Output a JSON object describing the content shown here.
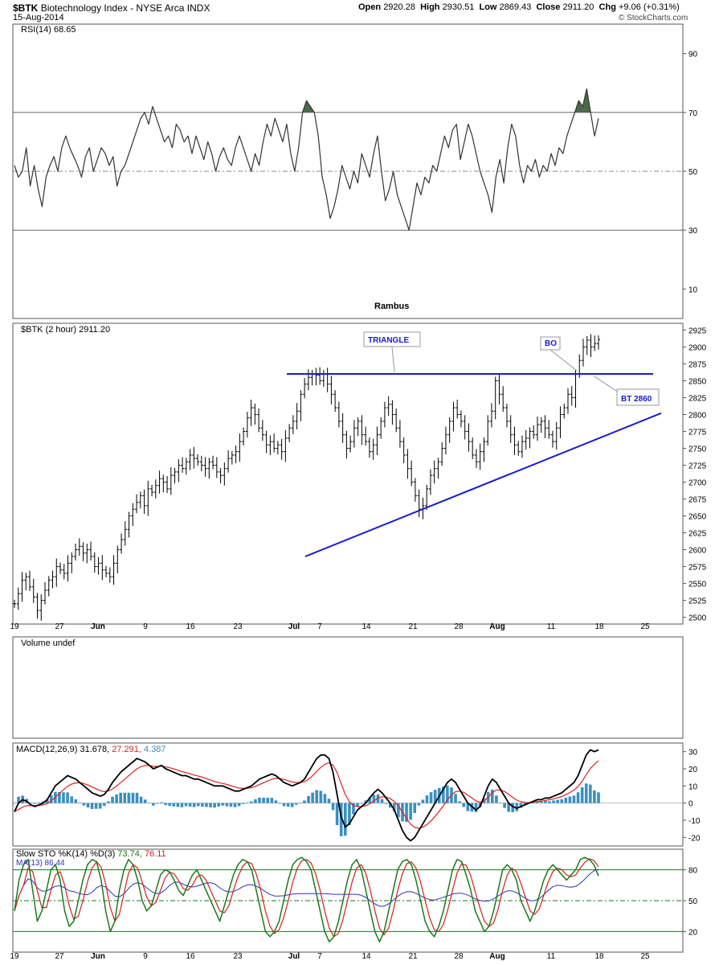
{
  "header": {
    "symbol": "$BTK",
    "name": "Biotechnology Index - NYSE Arca INDX",
    "date": "15-Aug-2014",
    "ohlc": {
      "open_label": "Open",
      "open": "2920.28",
      "high_label": "High",
      "high": "2930.51",
      "low_label": "Low",
      "low": "2869.43",
      "close_label": "Close",
      "close": "2911.20",
      "chg_label": "Chg",
      "chg": "+9.06 (+0.31%)"
    },
    "watermark": "© StockCharts.com"
  },
  "colors": {
    "background": "#ffffff",
    "price_bars": "#000000",
    "trendlines": "#1a1ad4",
    "annotation_text": "#1a1ad4",
    "rsi_line": "#333333",
    "rsi_fill": "#4a6b4a",
    "macd_line": "#000000",
    "macd_signal": "#e02020",
    "macd_histogram": "#3a8fc0",
    "sto_k": "#1a7a1a",
    "sto_d": "#d02020",
    "sto_ma": "#3030c0",
    "guide_green": "#1a7a1a"
  },
  "chart_data": [
    {
      "panel": "rsi",
      "type": "line",
      "label": "RSI(14) 68.65",
      "ylim": [
        0,
        100
      ],
      "yticks": [
        10,
        30,
        50,
        70,
        90
      ],
      "reference_lines": [
        30,
        50,
        70
      ],
      "annotation": "Rambus",
      "values": [
        52,
        48,
        50,
        58,
        45,
        52,
        44,
        38,
        48,
        52,
        55,
        50,
        58,
        62,
        58,
        55,
        52,
        48,
        55,
        58,
        50,
        54,
        58,
        56,
        52,
        55,
        45,
        50,
        52,
        56,
        60,
        64,
        68,
        70,
        66,
        72,
        68,
        64,
        60,
        62,
        58,
        66,
        64,
        60,
        62,
        56,
        62,
        58,
        54,
        60,
        56,
        50,
        55,
        58,
        54,
        52,
        58,
        62,
        58,
        54,
        50,
        56,
        52,
        60,
        66,
        62,
        68,
        64,
        60,
        66,
        56,
        50,
        58,
        70,
        74,
        72,
        70,
        62,
        48,
        42,
        34,
        38,
        44,
        52,
        48,
        44,
        50,
        46,
        56,
        52,
        48,
        56,
        62,
        50,
        40,
        44,
        50,
        42,
        38,
        34,
        30,
        38,
        46,
        42,
        48,
        46,
        52,
        50,
        56,
        62,
        58,
        64,
        66,
        54,
        60,
        66,
        62,
        56,
        50,
        46,
        42,
        36,
        48,
        54,
        46,
        58,
        66,
        62,
        52,
        46,
        52,
        50,
        54,
        48,
        52,
        50,
        56,
        52,
        58,
        56,
        62,
        66,
        70,
        74,
        72,
        78,
        70,
        62,
        68
      ]
    },
    {
      "panel": "price",
      "type": "ohlc",
      "label": "$BTK (2 hour) 2911.20",
      "ylim": [
        2490,
        2935
      ],
      "yticks": [
        2500,
        2525,
        2550,
        2575,
        2600,
        2625,
        2650,
        2675,
        2700,
        2725,
        2750,
        2775,
        2800,
        2825,
        2850,
        2875,
        2900,
        2925
      ],
      "x_date_labels": [
        "19",
        "27",
        "Jun",
        "9",
        "16",
        "23",
        "Jul",
        "7",
        "14",
        "21",
        "28",
        "Aug",
        "11",
        "18",
        "25"
      ],
      "annotations": [
        {
          "text": "TRIANGLE",
          "value": 2872
        },
        {
          "text": "BO",
          "value": 2903
        },
        {
          "text": "BT 2860",
          "value": 2830
        }
      ],
      "horizontal_resistance": 2860,
      "support_line_start": 2590,
      "support_line_end": 2802,
      "close": [
        2520,
        2535,
        2555,
        2560,
        2545,
        2530,
        2510,
        2525,
        2540,
        2555,
        2560,
        2575,
        2570,
        2565,
        2580,
        2590,
        2600,
        2605,
        2595,
        2600,
        2590,
        2575,
        2580,
        2570,
        2565,
        2560,
        2580,
        2600,
        2615,
        2630,
        2650,
        2660,
        2670,
        2680,
        2665,
        2690,
        2685,
        2695,
        2705,
        2700,
        2690,
        2710,
        2715,
        2725,
        2720,
        2730,
        2740,
        2735,
        2730,
        2725,
        2720,
        2730,
        2725,
        2715,
        2710,
        2720,
        2735,
        2740,
        2745,
        2760,
        2775,
        2795,
        2810,
        2800,
        2780,
        2770,
        2755,
        2760,
        2750,
        2755,
        2745,
        2765,
        2780,
        2790,
        2805,
        2830,
        2845,
        2855,
        2860,
        2858,
        2850,
        2860,
        2845,
        2830,
        2810,
        2790,
        2770,
        2750,
        2760,
        2780,
        2790,
        2770,
        2760,
        2745,
        2755,
        2770,
        2790,
        2810,
        2815,
        2800,
        2780,
        2760,
        2740,
        2720,
        2700,
        2680,
        2660,
        2665,
        2690,
        2710,
        2720,
        2730,
        2750,
        2770,
        2790,
        2810,
        2800,
        2790,
        2775,
        2760,
        2740,
        2730,
        2745,
        2760,
        2790,
        2805,
        2850,
        2830,
        2810,
        2790,
        2770,
        2755,
        2745,
        2760,
        2765,
        2775,
        2770,
        2785,
        2790,
        2780,
        2770,
        2760,
        2780,
        2800,
        2810,
        2830,
        2825,
        2860,
        2880,
        2900,
        2910,
        2900,
        2905,
        2911
      ]
    },
    {
      "panel": "volume",
      "type": "bar",
      "label": "Volume undef",
      "values": []
    },
    {
      "panel": "macd",
      "type": "line",
      "label": "MACD(12,26,9)",
      "label_values": {
        "macd": "31.678",
        "signal": "27.291",
        "hist": "4.387"
      },
      "ylim": [
        -25,
        35
      ],
      "yticks": [
        -20,
        -10,
        0,
        10,
        20,
        30
      ],
      "macd": [
        -5,
        0,
        2,
        1,
        -1,
        -2,
        -1,
        0,
        2,
        6,
        10,
        12,
        14,
        16,
        15,
        14,
        12,
        10,
        8,
        6,
        5,
        4,
        5,
        8,
        12,
        15,
        18,
        20,
        22,
        24,
        26,
        25,
        24,
        22,
        20,
        21,
        22,
        20,
        19,
        18,
        17,
        16,
        16,
        15,
        14,
        14,
        13,
        12,
        11,
        10,
        10,
        10,
        9,
        8,
        7,
        7,
        8,
        9,
        10,
        12,
        14,
        15,
        16,
        17,
        16,
        14,
        12,
        11,
        10,
        11,
        12,
        14,
        18,
        22,
        26,
        28,
        28,
        26,
        18,
        5,
        -8,
        -14,
        -12,
        -8,
        -4,
        -2,
        0,
        3,
        6,
        8,
        6,
        3,
        0,
        -4,
        -10,
        -16,
        -20,
        -22,
        -20,
        -16,
        -12,
        -8,
        -4,
        0,
        4,
        8,
        12,
        14,
        12,
        8,
        4,
        0,
        -2,
        -4,
        -2,
        4,
        10,
        14,
        12,
        8,
        4,
        0,
        -2,
        -3,
        -2,
        -1,
        0,
        1,
        2,
        2,
        3,
        3,
        4,
        5,
        6,
        8,
        10,
        12,
        16,
        22,
        28,
        31,
        30,
        31
      ]
    },
    {
      "panel": "sto",
      "type": "line",
      "label": "Slow STO %K(14) %D(3)",
      "label_values": {
        "k": "73.74",
        "d": "76.11"
      },
      "ma_label": "MA(13) 86.44",
      "ylim": [
        0,
        100
      ],
      "yticks": [
        20,
        50,
        80
      ],
      "reference_lines": [
        20,
        50,
        80
      ],
      "k": [
        40,
        70,
        85,
        90,
        60,
        30,
        40,
        60,
        80,
        85,
        70,
        40,
        25,
        30,
        50,
        70,
        85,
        90,
        88,
        70,
        40,
        20,
        30,
        60,
        80,
        90,
        85,
        70,
        50,
        40,
        45,
        60,
        75,
        80,
        78,
        70,
        60,
        55,
        65,
        75,
        80,
        70,
        60,
        50,
        40,
        30,
        45,
        60,
        75,
        85,
        90,
        88,
        80,
        60,
        40,
        20,
        15,
        20,
        30,
        50,
        70,
        85,
        90,
        92,
        88,
        80,
        60,
        40,
        20,
        10,
        15,
        30,
        50,
        70,
        85,
        90,
        80,
        60,
        40,
        20,
        10,
        20,
        40,
        60,
        80,
        88,
        90,
        85,
        70,
        50,
        30,
        20,
        15,
        25,
        40,
        60,
        80,
        90,
        88,
        75,
        60,
        40,
        30,
        20,
        25,
        40,
        60,
        80,
        85,
        80,
        70,
        50,
        40,
        30,
        40,
        55,
        70,
        80,
        85,
        80,
        75,
        70,
        75,
        80,
        90,
        92,
        90,
        85,
        74
      ]
    }
  ]
}
